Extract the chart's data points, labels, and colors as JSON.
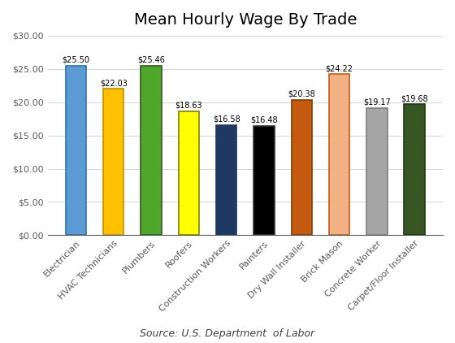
{
  "title": "Mean Hourly Wage By Trade",
  "categories": [
    "Electrician",
    "HVAC Technicians",
    "Plumbers",
    "Roofers",
    "Construction Workers",
    "Painters",
    "Dry Wall Installer",
    "Brick Mason",
    "Concrete Worker",
    "Carpet/Floor Installer"
  ],
  "values": [
    25.5,
    22.03,
    25.46,
    18.63,
    16.58,
    16.48,
    20.38,
    24.22,
    19.17,
    19.68
  ],
  "labels": [
    "$25.50",
    "$22.03",
    "$25.46",
    "$18.63",
    "$16.58",
    "$16.48",
    "$20.38",
    "$24.22",
    "$19.17",
    "$19.68"
  ],
  "bar_colors": [
    "#5b9bd5",
    "#ffc000",
    "#4ea72a",
    "#ffff00",
    "#1f3864",
    "#000000",
    "#c55a11",
    "#f4b183",
    "#a5a5a5",
    "#375623"
  ],
  "bar_edge_colors": [
    "#2e75b6",
    "#bf9000",
    "#375623",
    "#808000",
    "#1f3864",
    "#333333",
    "#833c00",
    "#c55a11",
    "#7f7f7f",
    "#1e3a13"
  ],
  "ylim": [
    0,
    30
  ],
  "yticks": [
    0,
    5,
    10,
    15,
    20,
    25,
    30
  ],
  "ytick_labels": [
    "$0.00",
    "$5.00",
    "$10.00",
    "$15.00",
    "$20.00",
    "$25.00",
    "$30.00"
  ],
  "source_text": "Source: U.S. Department  of Labor",
  "background_color": "#ffffff",
  "grid_color": "#d9d9d9",
  "title_fontsize": 14,
  "label_fontsize": 7,
  "tick_fontsize": 8,
  "source_fontsize": 9,
  "bar_width": 0.55
}
